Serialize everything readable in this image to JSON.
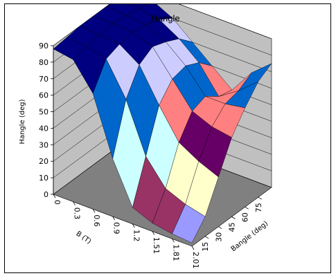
{
  "chart_data": {
    "type": "surface",
    "title": "Hangle",
    "zlabel": "Hangle (deg)",
    "xlabel": "B (T)",
    "ylabel": "Bangle (deg)",
    "zlim": [
      0,
      90
    ],
    "z_ticks": [
      "0",
      "10",
      "20",
      "30",
      "40",
      "50",
      "60",
      "70",
      "80",
      "90"
    ],
    "b_ticks": [
      "0",
      "0.3",
      "0.6",
      "0.9",
      "1.2",
      "1.51",
      "1.81",
      "2.01"
    ],
    "bangle_ticks": [
      "15",
      "30",
      "45",
      "60",
      "75"
    ],
    "b_values": [
      0,
      0.3,
      0.6,
      0.9,
      1.2,
      1.51,
      1.81,
      2.01
    ],
    "bangle_values": [
      0,
      15,
      30,
      45,
      60,
      75,
      90
    ],
    "values": [
      [
        88,
        89,
        90,
        90,
        90,
        89,
        88
      ],
      [
        86,
        88,
        89,
        90,
        89,
        87,
        86
      ],
      [
        70,
        85,
        88,
        89,
        88,
        85,
        80
      ],
      [
        35,
        65,
        80,
        85,
        82,
        78,
        70
      ],
      [
        10,
        35,
        60,
        70,
        72,
        68,
        60
      ],
      [
        5,
        20,
        42,
        55,
        58,
        52,
        50
      ],
      [
        3,
        15,
        35,
        50,
        58,
        60,
        65
      ],
      [
        2,
        12,
        30,
        48,
        60,
        70,
        75
      ]
    ],
    "band_colors": [
      "#9999ff",
      "#993366",
      "#ffffcc",
      "#ccffff",
      "#660066",
      "#ff8080",
      "#0066cc",
      "#ccccff",
      "#000080"
    ],
    "wall_color": "#c0c0c0",
    "floor_color": "#808080",
    "grid": true
  }
}
